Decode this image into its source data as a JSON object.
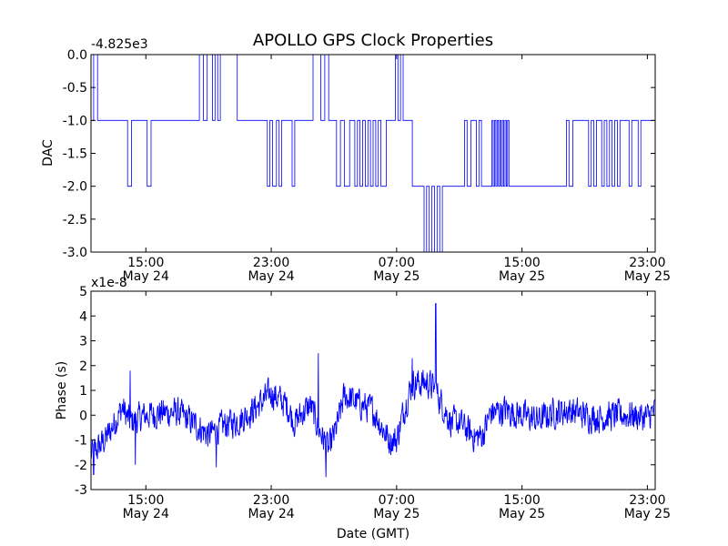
{
  "figure": {
    "title": "APOLLO GPS Clock Properties",
    "shared_xlabel": "Date (GMT)"
  },
  "chart_data": [
    {
      "type": "line",
      "title": "APOLLO GPS Clock Properties",
      "xlabel": "",
      "ylabel": "DAC",
      "offset_label": "-4.825e3",
      "color": "#0000ff",
      "grid": false,
      "xlim": [
        "May 24 11:30",
        "May 25 23:30"
      ],
      "ylim": [
        -3.0,
        0.0
      ],
      "yticks": [
        "0.0",
        "-0.5",
        "-1.0",
        "-1.5",
        "-2.0",
        "-2.5",
        "-3.0"
      ],
      "xticks": [
        {
          "time": "15:00",
          "date": "May 24"
        },
        {
          "time": "23:00",
          "date": "May 24"
        },
        {
          "time": "07:00",
          "date": "May 25"
        },
        {
          "time": "15:00",
          "date": "May 25"
        },
        {
          "time": "23:00",
          "date": "May 25"
        }
      ],
      "series": [
        {
          "points": [
            [
              "May 24 11:30",
              -1
            ],
            [
              "May 24 11:40",
              0
            ],
            [
              "May 24 11:55",
              -1
            ],
            [
              "May 24 13:50",
              -2
            ],
            [
              "May 24 14:05",
              -1
            ],
            [
              "May 24 15:05",
              -2
            ],
            [
              "May 24 15:20",
              -1
            ],
            [
              "May 24 18:25",
              0
            ],
            [
              "May 24 18:40",
              -1
            ],
            [
              "May 24 18:55",
              0
            ],
            [
              "May 24 19:15",
              -1
            ],
            [
              "May 24 19:25",
              0
            ],
            [
              "May 24 19:35",
              -1
            ],
            [
              "May 24 19:45",
              0
            ],
            [
              "May 24 20:50",
              -1
            ],
            [
              "May 24 22:45",
              -2
            ],
            [
              "May 24 22:55",
              -1
            ],
            [
              "May 24 23:05",
              -2
            ],
            [
              "May 24 23:20",
              -1
            ],
            [
              "May 24 23:30",
              -2
            ],
            [
              "May 24 23:40",
              -1
            ],
            [
              "May 25 00:20",
              -2
            ],
            [
              "May 25 00:30",
              -1
            ],
            [
              "May 25 01:40",
              0
            ],
            [
              "May 25 02:10",
              -1
            ],
            [
              "May 25 02:25",
              0
            ],
            [
              "May 25 02:40",
              -1
            ],
            [
              "May 25 03:10",
              -2
            ],
            [
              "May 25 03:25",
              -1
            ],
            [
              "May 25 03:40",
              -2
            ],
            [
              "May 25 04:00",
              -1
            ],
            [
              "May 25 04:20",
              -2
            ],
            [
              "May 25 04:30",
              -1
            ],
            [
              "May 25 04:40",
              -2
            ],
            [
              "May 25 04:50",
              -1
            ],
            [
              "May 25 05:00",
              -2
            ],
            [
              "May 25 05:10",
              -1
            ],
            [
              "May 25 05:20",
              -2
            ],
            [
              "May 25 05:30",
              -1
            ],
            [
              "May 25 05:40",
              -2
            ],
            [
              "May 25 05:50",
              -1
            ],
            [
              "May 25 06:00",
              -2
            ],
            [
              "May 25 06:20",
              -1
            ],
            [
              "May 25 06:55",
              0
            ],
            [
              "May 25 07:05",
              -1
            ],
            [
              "May 25 07:15",
              0
            ],
            [
              "May 25 07:25",
              -1
            ],
            [
              "May 25 07:40",
              -1
            ],
            [
              "May 25 08:00",
              -2
            ],
            [
              "May 25 08:45",
              -3
            ],
            [
              "May 25 08:55",
              -2
            ],
            [
              "May 25 09:05",
              -3
            ],
            [
              "May 25 09:15",
              -2
            ],
            [
              "May 25 09:25",
              -3
            ],
            [
              "May 25 09:35",
              -2
            ],
            [
              "May 25 09:45",
              -3
            ],
            [
              "May 25 09:55",
              -2
            ],
            [
              "May 25 11:20",
              -1
            ],
            [
              "May 25 11:30",
              -2
            ],
            [
              "May 25 11:45",
              -1
            ],
            [
              "May 25 12:05",
              -2
            ],
            [
              "May 25 12:15",
              -1
            ],
            [
              "May 25 12:25",
              -2
            ],
            [
              "May 25 13:05",
              -1
            ],
            [
              "May 25 13:10",
              -2
            ],
            [
              "May 25 13:15",
              -1
            ],
            [
              "May 25 13:20",
              -2
            ],
            [
              "May 25 13:25",
              -1
            ],
            [
              "May 25 13:30",
              -2
            ],
            [
              "May 25 13:35",
              -1
            ],
            [
              "May 25 13:40",
              -2
            ],
            [
              "May 25 13:45",
              -1
            ],
            [
              "May 25 13:50",
              -2
            ],
            [
              "May 25 13:55",
              -1
            ],
            [
              "May 25 14:00",
              -2
            ],
            [
              "May 25 14:05",
              -1
            ],
            [
              "May 25 14:10",
              -2
            ],
            [
              "May 25 17:50",
              -1
            ],
            [
              "May 25 18:00",
              -2
            ],
            [
              "May 25 18:15",
              -1
            ],
            [
              "May 25 19:15",
              -2
            ],
            [
              "May 25 19:25",
              -1
            ],
            [
              "May 25 19:35",
              -2
            ],
            [
              "May 25 19:45",
              -1
            ],
            [
              "May 25 20:05",
              -2
            ],
            [
              "May 25 20:15",
              -1
            ],
            [
              "May 25 20:25",
              -2
            ],
            [
              "May 25 20:35",
              -1
            ],
            [
              "May 25 20:45",
              -2
            ],
            [
              "May 25 20:55",
              -1
            ],
            [
              "May 25 21:05",
              -2
            ],
            [
              "May 25 21:15",
              -1
            ],
            [
              "May 25 21:50",
              -2
            ],
            [
              "May 25 22:00",
              -1
            ],
            [
              "May 25 22:25",
              -2
            ],
            [
              "May 25 22:35",
              -1
            ],
            [
              "May 25 23:30",
              -1
            ]
          ]
        }
      ]
    },
    {
      "type": "line",
      "title": "",
      "xlabel": "Date (GMT)",
      "ylabel": "Phase (s)",
      "offset_label": "x1e-8",
      "color": "#0000ff",
      "grid": false,
      "xlim": [
        "May 24 11:30",
        "May 25 23:30"
      ],
      "ylim": [
        -3,
        5
      ],
      "yticks": [
        "5",
        "4",
        "3",
        "2",
        "1",
        "0",
        "-1",
        "-2",
        "-3"
      ],
      "xticks": [
        {
          "time": "15:00",
          "date": "May 24"
        },
        {
          "time": "23:00",
          "date": "May 24"
        },
        {
          "time": "07:00",
          "date": "May 25"
        },
        {
          "time": "15:00",
          "date": "May 25"
        },
        {
          "time": "23:00",
          "date": "May 25"
        }
      ],
      "series": [
        {
          "noise_amplitude": 0.45,
          "points": [
            [
              "May 24 11:30",
              -1.6
            ],
            [
              "May 24 12:00",
              -1.3
            ],
            [
              "May 24 12:30",
              -0.9
            ],
            [
              "May 24 13:00",
              -0.3
            ],
            [
              "May 24 13:30",
              0.3
            ],
            [
              "May 24 14:00",
              -0.3
            ],
            [
              "May 24 15:00",
              0.0
            ],
            [
              "May 24 16:00",
              0.1
            ],
            [
              "May 24 17:00",
              0.1
            ],
            [
              "May 24 18:00",
              -0.3
            ],
            [
              "May 24 19:00",
              -0.8
            ],
            [
              "May 24 20:00",
              -0.4
            ],
            [
              "May 24 21:00",
              -0.2
            ],
            [
              "May 24 22:00",
              0.3
            ],
            [
              "May 24 23:00",
              0.9
            ],
            [
              "May 25 00:00",
              0.4
            ],
            [
              "May 25 00:30",
              -0.3
            ],
            [
              "May 25 01:00",
              0.1
            ],
            [
              "May 25 01:30",
              0.4
            ],
            [
              "May 25 02:00",
              -0.5
            ],
            [
              "May 25 02:40",
              -1.4
            ],
            [
              "May 25 03:10",
              -0.5
            ],
            [
              "May 25 03:40",
              0.8
            ],
            [
              "May 25 04:30",
              0.5
            ],
            [
              "May 25 05:30",
              0.2
            ],
            [
              "May 25 06:30",
              -1.0
            ],
            [
              "May 25 07:00",
              -1.0
            ],
            [
              "May 25 07:30",
              0.3
            ],
            [
              "May 25 08:00",
              1.3
            ],
            [
              "May 25 09:00",
              1.3
            ],
            [
              "May 25 09:30",
              1.0
            ],
            [
              "May 25 10:00",
              0.3
            ],
            [
              "May 25 10:30",
              -0.3
            ],
            [
              "May 25 11:00",
              -0.3
            ],
            [
              "May 25 12:00",
              -0.9
            ],
            [
              "May 25 12:30",
              -0.8
            ],
            [
              "May 25 13:00",
              0.1
            ],
            [
              "May 25 14:00",
              0.2
            ],
            [
              "May 25 15:00",
              0.0
            ],
            [
              "May 25 16:00",
              -0.2
            ],
            [
              "May 25 17:00",
              0.1
            ],
            [
              "May 25 18:00",
              0.2
            ],
            [
              "May 25 19:00",
              0.0
            ],
            [
              "May 25 20:00",
              -0.1
            ],
            [
              "May 25 21:00",
              0.0
            ],
            [
              "May 25 22:00",
              0.0
            ],
            [
              "May 25 23:00",
              -0.1
            ],
            [
              "May 25 23:30",
              0.2
            ]
          ],
          "spikes": [
            [
              "May 25 09:30",
              4.5
            ],
            [
              "May 25 02:00",
              2.5
            ],
            [
              "May 24 14:00",
              1.8
            ],
            [
              "May 25 08:00",
              2.3
            ],
            [
              "May 25 02:30",
              -2.5
            ],
            [
              "May 24 11:40",
              -2.4
            ],
            [
              "May 24 19:30",
              -2.1
            ],
            [
              "May 24 14:20",
              -2.0
            ]
          ]
        }
      ]
    }
  ]
}
